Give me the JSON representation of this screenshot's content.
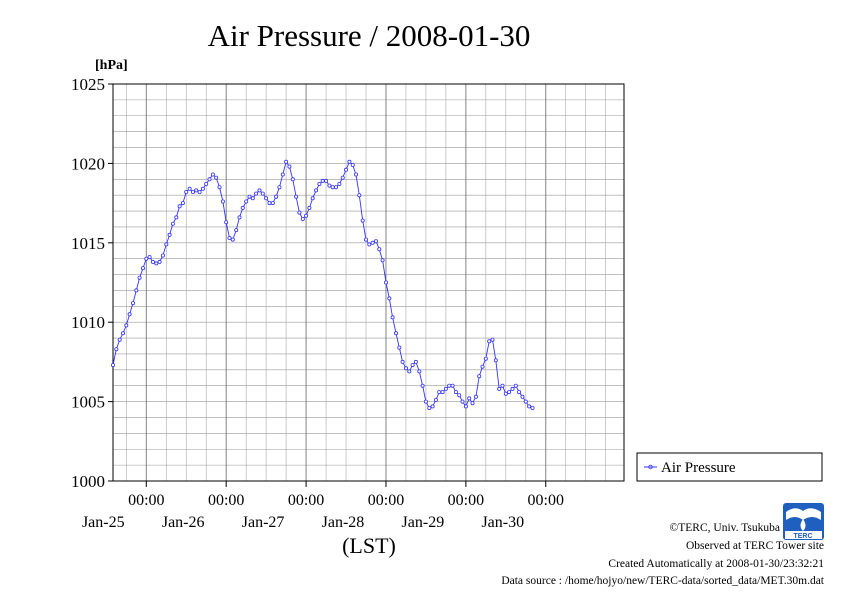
{
  "chart_data": {
    "type": "line",
    "title": "Air Pressure / 2008-01-30",
    "ylabel": "[hPa]",
    "xlabel": "(LST)",
    "ylim": [
      1000,
      1025
    ],
    "yticks": [
      1000,
      1005,
      1010,
      1015,
      1020,
      1025
    ],
    "grid": true,
    "legend_position": "right",
    "x_start": "2008-01-24 14:00",
    "x_end": "2008-01-30 23:30",
    "x_ticks": [
      {
        "time": "2008-01-25 00:00",
        "time_label": "00:00",
        "date_label": "Jan-25"
      },
      {
        "time": "2008-01-26 00:00",
        "time_label": "00:00",
        "date_label": "Jan-26"
      },
      {
        "time": "2008-01-27 00:00",
        "time_label": "00:00",
        "date_label": "Jan-27"
      },
      {
        "time": "2008-01-28 00:00",
        "time_label": "00:00",
        "date_label": "Jan-28"
      },
      {
        "time": "2008-01-29 00:00",
        "time_label": "00:00",
        "date_label": "Jan-29"
      },
      {
        "time": "2008-01-30 00:00",
        "time_label": "00:00",
        "date_label": "Jan-30"
      }
    ],
    "series": [
      {
        "name": "Air Pressure",
        "color": "#3333ff",
        "points": [
          [
            "2008-01-24 14:00",
            1007.3
          ],
          [
            "2008-01-24 15:00",
            1008.3
          ],
          [
            "2008-01-24 16:00",
            1008.9
          ],
          [
            "2008-01-24 17:00",
            1009.3
          ],
          [
            "2008-01-24 18:00",
            1009.8
          ],
          [
            "2008-01-24 19:00",
            1010.5
          ],
          [
            "2008-01-24 20:00",
            1011.2
          ],
          [
            "2008-01-24 21:00",
            1012.0
          ],
          [
            "2008-01-24 22:00",
            1012.8
          ],
          [
            "2008-01-24 23:00",
            1013.4
          ],
          [
            "2008-01-25 00:00",
            1014.0
          ],
          [
            "2008-01-25 01:00",
            1014.1
          ],
          [
            "2008-01-25 02:00",
            1013.8
          ],
          [
            "2008-01-25 03:00",
            1013.7
          ],
          [
            "2008-01-25 04:00",
            1013.8
          ],
          [
            "2008-01-25 05:00",
            1014.2
          ],
          [
            "2008-01-25 06:00",
            1014.9
          ],
          [
            "2008-01-25 07:00",
            1015.5
          ],
          [
            "2008-01-25 08:00",
            1016.2
          ],
          [
            "2008-01-25 09:00",
            1016.6
          ],
          [
            "2008-01-25 10:00",
            1017.3
          ],
          [
            "2008-01-25 11:00",
            1017.5
          ],
          [
            "2008-01-25 12:00",
            1018.2
          ],
          [
            "2008-01-25 13:00",
            1018.4
          ],
          [
            "2008-01-25 14:00",
            1018.2
          ],
          [
            "2008-01-25 15:00",
            1018.3
          ],
          [
            "2008-01-25 16:00",
            1018.2
          ],
          [
            "2008-01-25 17:00",
            1018.4
          ],
          [
            "2008-01-25 18:00",
            1018.7
          ],
          [
            "2008-01-25 19:00",
            1019.0
          ],
          [
            "2008-01-25 20:00",
            1019.3
          ],
          [
            "2008-01-25 21:00",
            1019.1
          ],
          [
            "2008-01-25 22:00",
            1018.5
          ],
          [
            "2008-01-25 23:00",
            1017.6
          ],
          [
            "2008-01-26 00:00",
            1016.3
          ],
          [
            "2008-01-26 01:00",
            1015.3
          ],
          [
            "2008-01-26 02:00",
            1015.2
          ],
          [
            "2008-01-26 03:00",
            1015.8
          ],
          [
            "2008-01-26 04:00",
            1016.6
          ],
          [
            "2008-01-26 05:00",
            1017.2
          ],
          [
            "2008-01-26 06:00",
            1017.6
          ],
          [
            "2008-01-26 07:00",
            1017.9
          ],
          [
            "2008-01-26 08:00",
            1017.8
          ],
          [
            "2008-01-26 09:00",
            1018.1
          ],
          [
            "2008-01-26 10:00",
            1018.3
          ],
          [
            "2008-01-26 11:00",
            1018.1
          ],
          [
            "2008-01-26 12:00",
            1017.8
          ],
          [
            "2008-01-26 13:00",
            1017.5
          ],
          [
            "2008-01-26 14:00",
            1017.5
          ],
          [
            "2008-01-26 15:00",
            1017.9
          ],
          [
            "2008-01-26 16:00",
            1018.5
          ],
          [
            "2008-01-26 17:00",
            1019.3
          ],
          [
            "2008-01-26 18:00",
            1020.1
          ],
          [
            "2008-01-26 19:00",
            1019.8
          ],
          [
            "2008-01-26 20:00",
            1019.0
          ],
          [
            "2008-01-26 21:00",
            1017.9
          ],
          [
            "2008-01-26 22:00",
            1016.9
          ],
          [
            "2008-01-26 23:00",
            1016.5
          ],
          [
            "2008-01-27 00:00",
            1016.7
          ],
          [
            "2008-01-27 01:00",
            1017.2
          ],
          [
            "2008-01-27 02:00",
            1017.8
          ],
          [
            "2008-01-27 03:00",
            1018.3
          ],
          [
            "2008-01-27 04:00",
            1018.7
          ],
          [
            "2008-01-27 05:00",
            1018.9
          ],
          [
            "2008-01-27 06:00",
            1018.9
          ],
          [
            "2008-01-27 07:00",
            1018.6
          ],
          [
            "2008-01-27 08:00",
            1018.5
          ],
          [
            "2008-01-27 09:00",
            1018.5
          ],
          [
            "2008-01-27 10:00",
            1018.7
          ],
          [
            "2008-01-27 11:00",
            1019.1
          ],
          [
            "2008-01-27 12:00",
            1019.6
          ],
          [
            "2008-01-27 13:00",
            1020.1
          ],
          [
            "2008-01-27 14:00",
            1019.9
          ],
          [
            "2008-01-27 15:00",
            1019.3
          ],
          [
            "2008-01-27 16:00",
            1018.0
          ],
          [
            "2008-01-27 17:00",
            1016.4
          ],
          [
            "2008-01-27 18:00",
            1015.2
          ],
          [
            "2008-01-27 19:00",
            1014.9
          ],
          [
            "2008-01-27 20:00",
            1015.0
          ],
          [
            "2008-01-27 21:00",
            1015.1
          ],
          [
            "2008-01-27 22:00",
            1014.6
          ],
          [
            "2008-01-27 23:00",
            1013.9
          ],
          [
            "2008-01-28 00:00",
            1012.5
          ],
          [
            "2008-01-28 01:00",
            1011.5
          ],
          [
            "2008-01-28 02:00",
            1010.3
          ],
          [
            "2008-01-28 03:00",
            1009.3
          ],
          [
            "2008-01-28 04:00",
            1008.4
          ],
          [
            "2008-01-28 05:00",
            1007.5
          ],
          [
            "2008-01-28 06:00",
            1007.1
          ],
          [
            "2008-01-28 07:00",
            1006.9
          ],
          [
            "2008-01-28 08:00",
            1007.3
          ],
          [
            "2008-01-28 09:00",
            1007.5
          ],
          [
            "2008-01-28 10:00",
            1006.9
          ],
          [
            "2008-01-28 11:00",
            1006.0
          ],
          [
            "2008-01-28 12:00",
            1005.0
          ],
          [
            "2008-01-28 13:00",
            1004.6
          ],
          [
            "2008-01-28 14:00",
            1004.7
          ],
          [
            "2008-01-28 15:00",
            1005.1
          ],
          [
            "2008-01-28 16:00",
            1005.6
          ],
          [
            "2008-01-28 17:00",
            1005.6
          ],
          [
            "2008-01-28 18:00",
            1005.8
          ],
          [
            "2008-01-28 19:00",
            1006.0
          ],
          [
            "2008-01-28 20:00",
            1006.0
          ],
          [
            "2008-01-28 21:00",
            1005.6
          ],
          [
            "2008-01-28 22:00",
            1005.4
          ],
          [
            "2008-01-28 23:00",
            1005.0
          ],
          [
            "2008-01-29 00:00",
            1004.7
          ],
          [
            "2008-01-29 01:00",
            1005.2
          ],
          [
            "2008-01-29 02:00",
            1004.9
          ],
          [
            "2008-01-29 03:00",
            1005.3
          ],
          [
            "2008-01-29 04:00",
            1006.6
          ],
          [
            "2008-01-29 05:00",
            1007.2
          ],
          [
            "2008-01-29 06:00",
            1007.7
          ],
          [
            "2008-01-29 07:00",
            1008.8
          ],
          [
            "2008-01-29 08:00",
            1008.9
          ],
          [
            "2008-01-29 09:00",
            1007.6
          ],
          [
            "2008-01-29 10:00",
            1005.8
          ],
          [
            "2008-01-29 11:00",
            1006.0
          ],
          [
            "2008-01-29 12:00",
            1005.5
          ],
          [
            "2008-01-29 13:00",
            1005.6
          ],
          [
            "2008-01-29 14:00",
            1005.8
          ],
          [
            "2008-01-29 15:00",
            1006.0
          ],
          [
            "2008-01-29 16:00",
            1005.6
          ],
          [
            "2008-01-29 17:00",
            1005.3
          ],
          [
            "2008-01-29 18:00",
            1005.0
          ],
          [
            "2008-01-29 19:00",
            1004.7
          ],
          [
            "2008-01-29 20:00",
            1004.6
          ]
        ]
      }
    ]
  },
  "credits": {
    "copyright": "©TERC, Univ. Tsukuba",
    "observed": "Observed at TERC Tower site",
    "created": "Created Automatically at 2008-01-30/23:32:21",
    "source": "Data source : /home/hojyo/new/TERC-data/sorted_data/MET.30m.dat",
    "logo_text": "TERC"
  }
}
